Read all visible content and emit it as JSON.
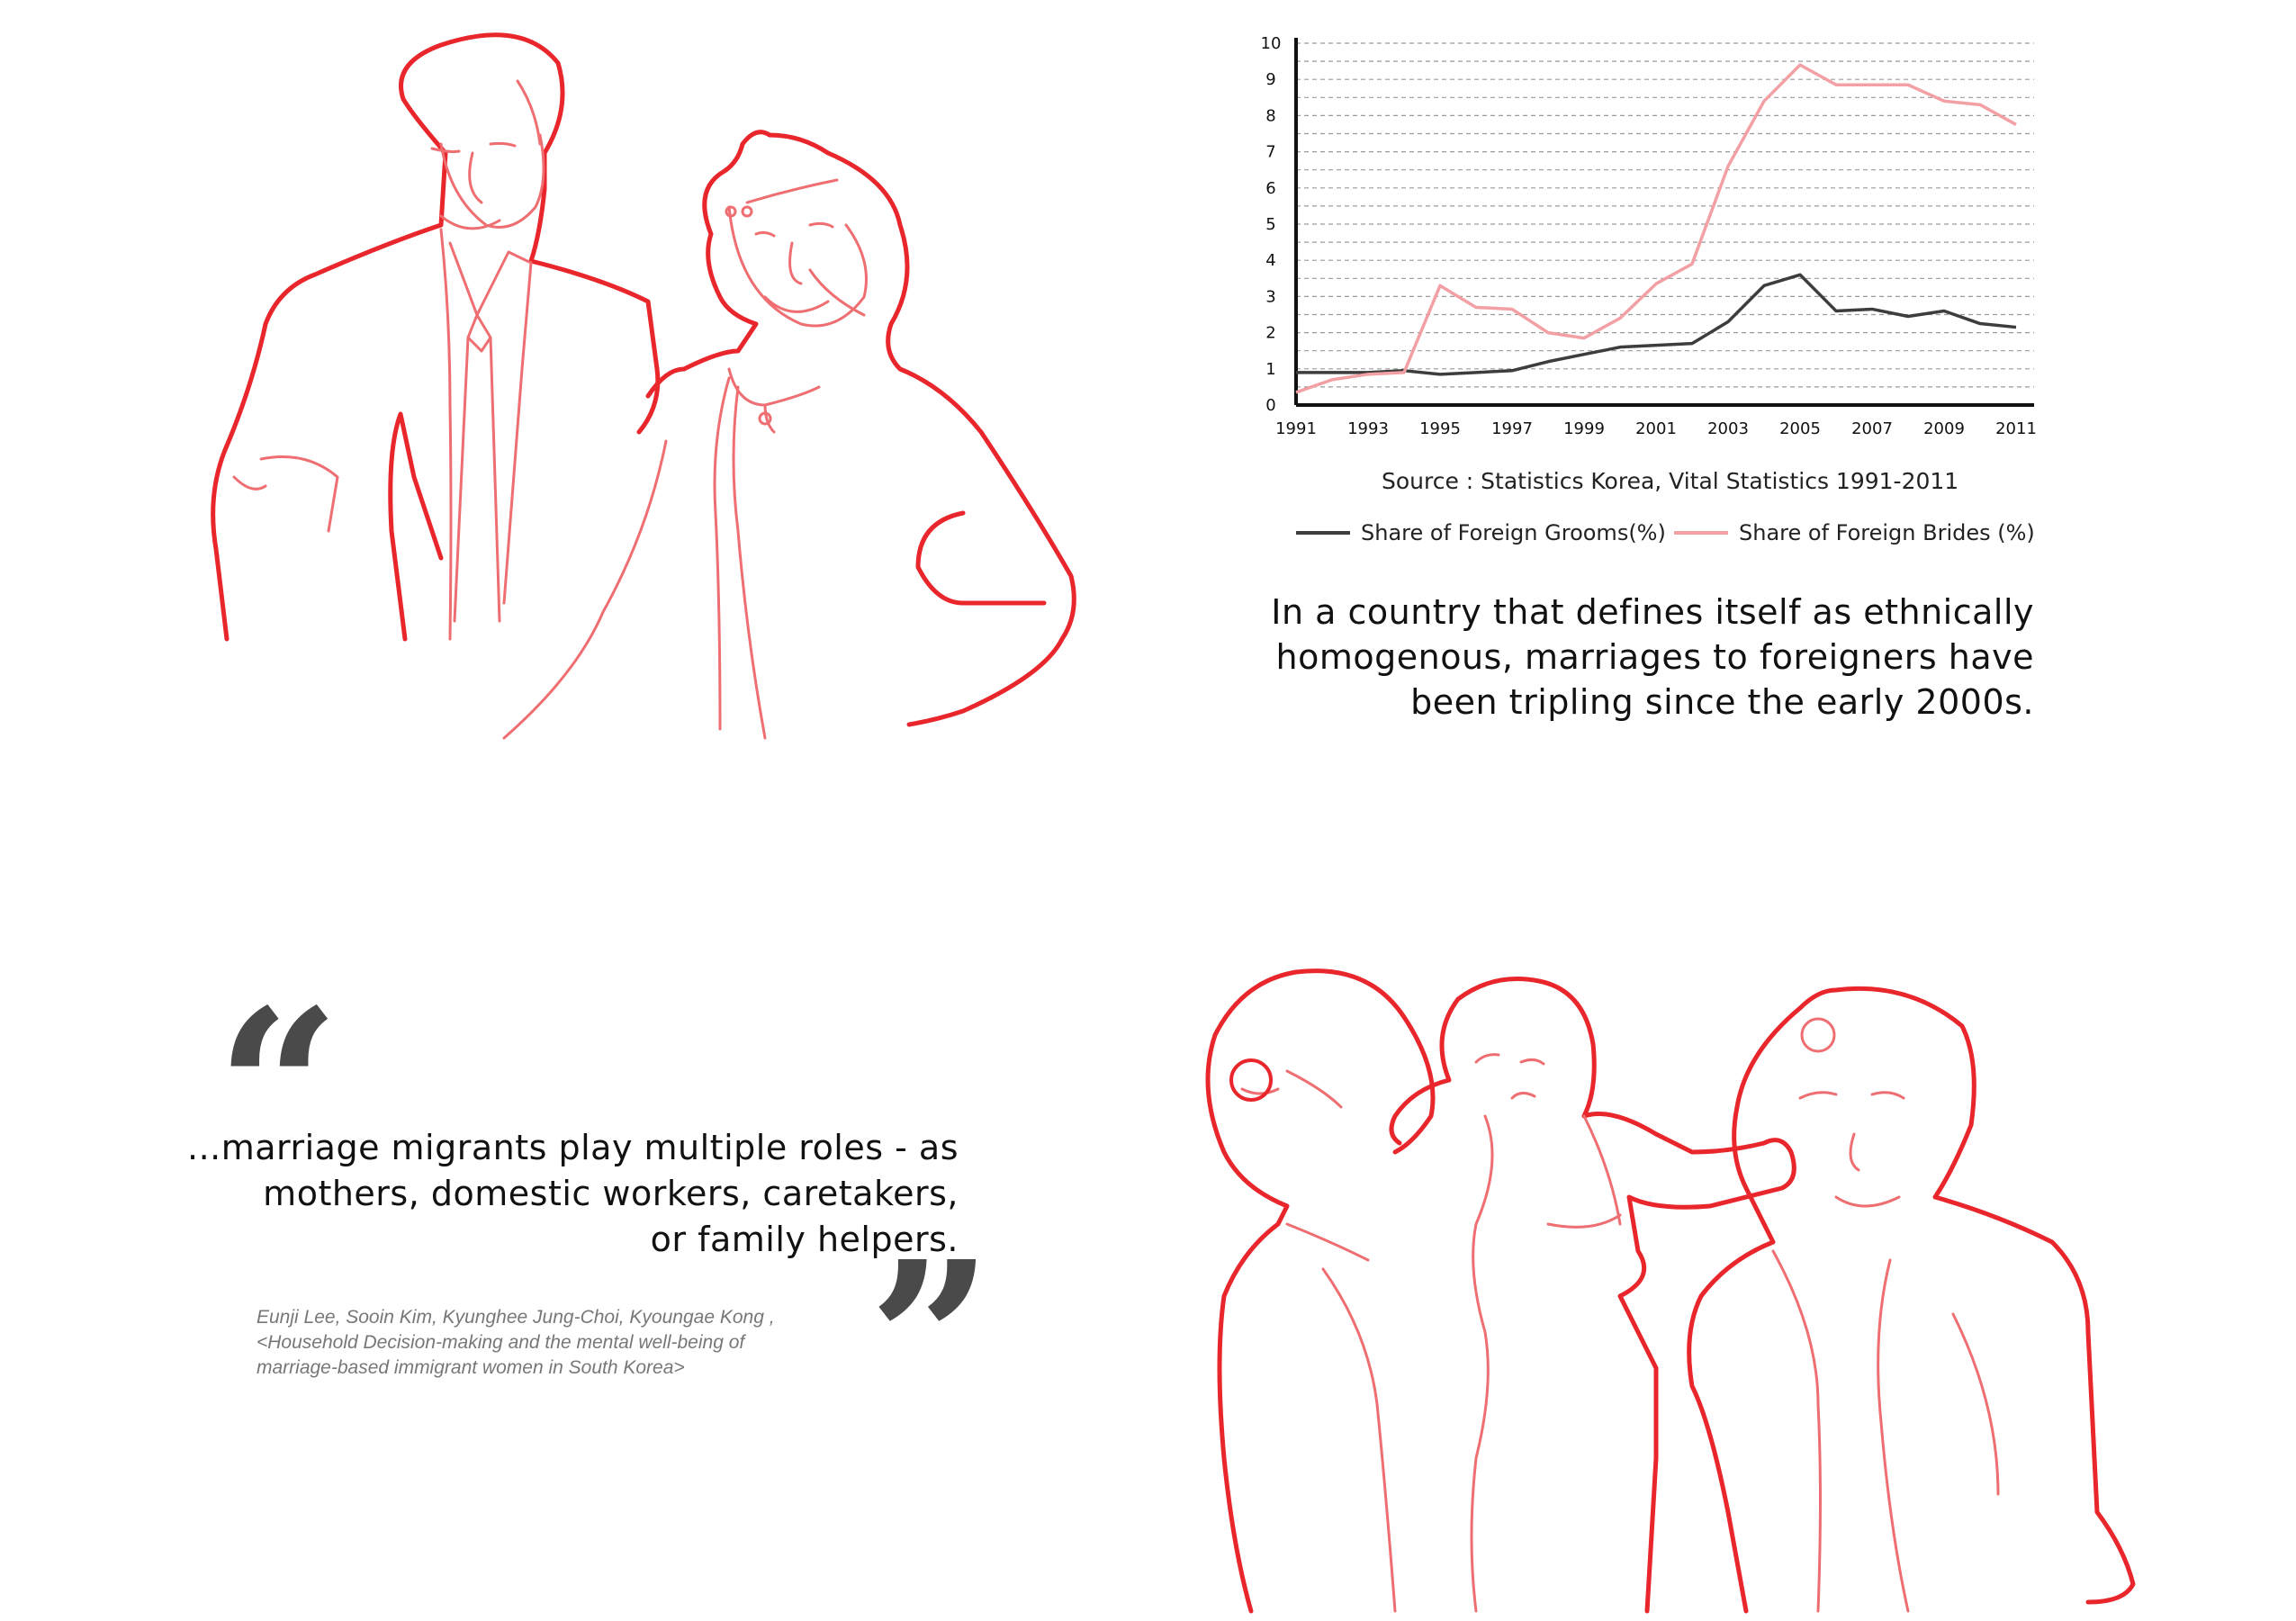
{
  "chart_data": {
    "type": "line",
    "x": [
      1991,
      1992,
      1993,
      1994,
      1995,
      1996,
      1997,
      1998,
      1999,
      2000,
      2001,
      2002,
      2003,
      2004,
      2005,
      2006,
      2007,
      2008,
      2009,
      2010,
      2011
    ],
    "x_tick_labels": [
      "1991",
      "1993",
      "1995",
      "1997",
      "1999",
      "2001",
      "2003",
      "2005",
      "2007",
      "2009",
      "2011"
    ],
    "y_tick_labels": [
      "0",
      "1",
      "2",
      "3",
      "4",
      "5",
      "6",
      "7",
      "8",
      "9",
      "10"
    ],
    "ylim": [
      0,
      10
    ],
    "xlim": [
      1991,
      2011.5
    ],
    "grid": "horizontal dashed",
    "legend_placement": "bottom",
    "series": [
      {
        "name": "Share of Foreign Grooms(%)",
        "color": "#3d3d3d",
        "values": [
          0.9,
          0.9,
          0.9,
          0.95,
          0.85,
          0.9,
          0.95,
          1.2,
          1.4,
          1.6,
          1.65,
          1.7,
          2.3,
          3.3,
          3.6,
          2.6,
          2.65,
          2.45,
          2.6,
          2.25,
          2.15
        ]
      },
      {
        "name": "Share of Foreign Brides (%)",
        "color": "#f2a0a4",
        "values": [
          0.35,
          0.7,
          0.85,
          0.9,
          3.3,
          2.7,
          2.65,
          2.0,
          1.85,
          2.4,
          3.35,
          3.9,
          6.6,
          8.4,
          9.4,
          8.85,
          8.85,
          8.85,
          8.4,
          8.3,
          7.75
        ]
      }
    ],
    "source": "Source : Statistics Korea, Vital Statistics 1991-2011"
  },
  "caption": {
    "line1": "In a country that defines itself as ethnically",
    "line2": "homogenous, marriages to foreigners have",
    "line3": "been tripling since the early 2000s."
  },
  "quote": {
    "open_mark": "“",
    "close_mark": "”",
    "line1": "...marriage migrants play multiple roles - as",
    "line2": "mothers, domestic workers, caretakers,",
    "line3": "or family helpers."
  },
  "citation": {
    "line1": "Eunji Lee, Sooin Kim, Kyunghee Jung-Choi, Kyoungae Kong ,",
    "line2": "<Household Decision-making and the mental well-being of",
    "line3": "marriage-based immigrant women in South Korea>"
  },
  "colors": {
    "illustration_outline": "#e8262b",
    "illustration_inner": "#ee6e72",
    "groom_line": "#3d3d3d",
    "bride_line": "#f2a0a4"
  },
  "illustrations": {
    "top": "couple-wedding-line-drawing",
    "bottom": "family-with-baby-line-drawing"
  }
}
